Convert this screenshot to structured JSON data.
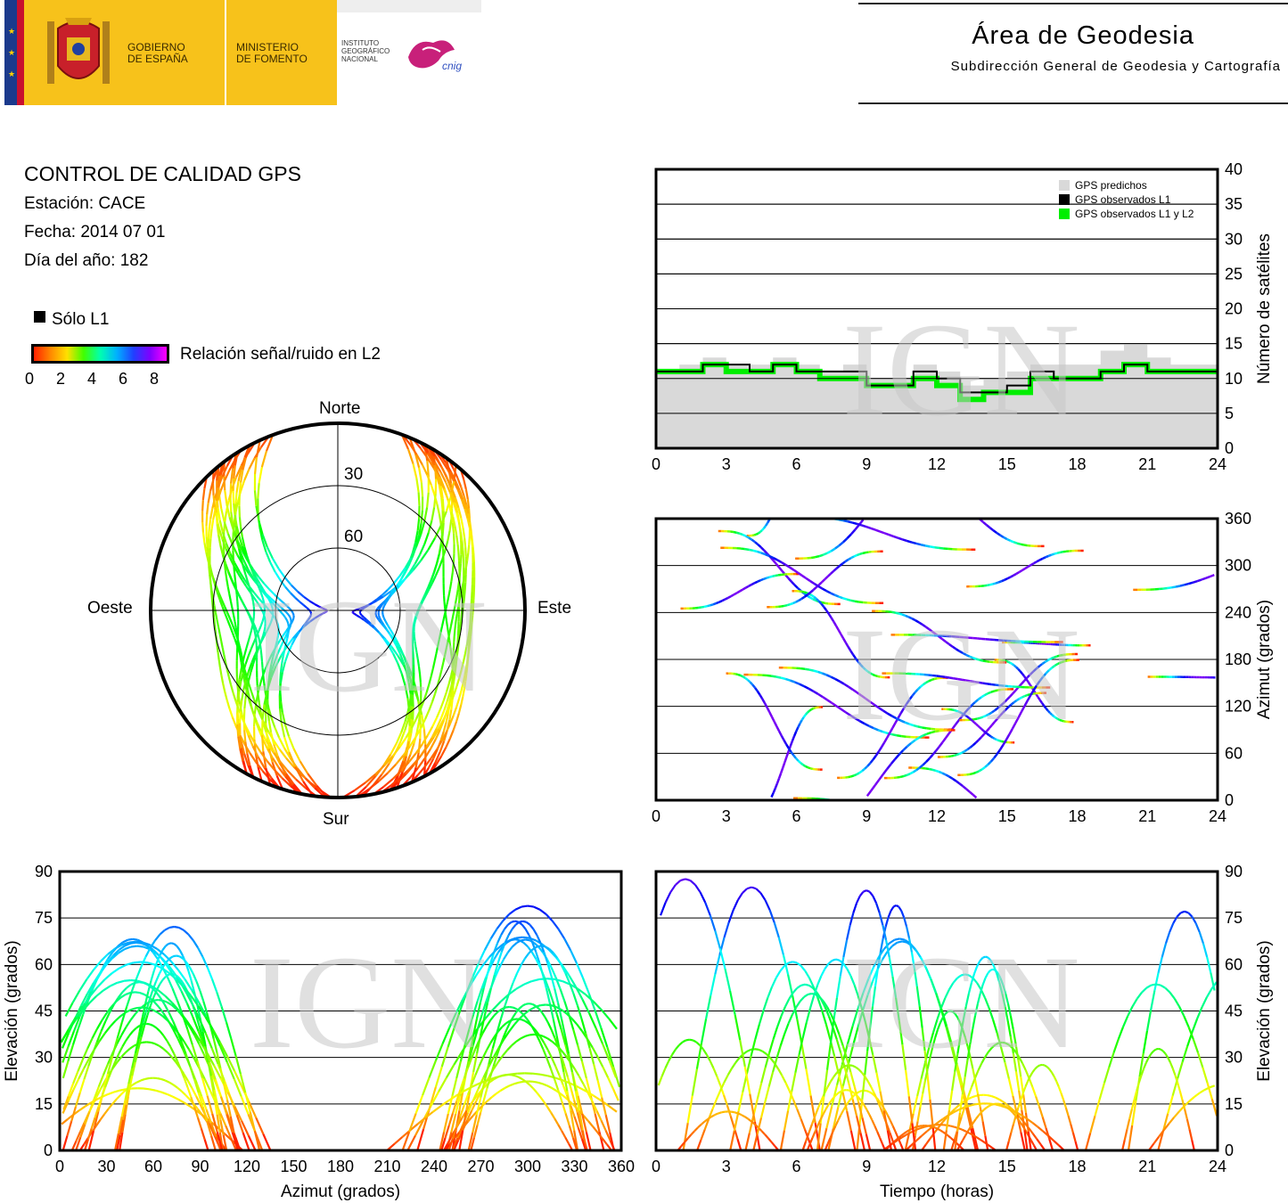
{
  "header": {
    "gov_line1": "GOBIERNO",
    "gov_line2": "DE ESPAÑA",
    "ministry_line1": "MINISTERIO",
    "ministry_line2": "DE FOMENTO",
    "inst_line1": "INSTITUTO",
    "inst_line2": "GEOGRÁFICO",
    "inst_line3": "NACIONAL",
    "cnig_logo_text": "cnig",
    "area_title": "Área de Geodesia",
    "area_subtitle": "Subdirección General de Geodesia y Cartografía"
  },
  "info": {
    "title": "CONTROL DE CALIDAD GPS",
    "station": "Estación: CACE",
    "date": "Fecha: 2014 07 01",
    "doy": "Día del año: 182",
    "legend_l1": "Sólo L1",
    "legend_snr": "Relación señal/ruido en L2",
    "colorbar_ticks": [
      "0",
      "2",
      "4",
      "6",
      "8"
    ]
  },
  "watermark": "IGN",
  "colors": {
    "predicted": "#d9d9d9",
    "observed_l1": "#000000",
    "observed_l1_l2": "#00ee00"
  },
  "chart_data": [
    {
      "type": "scatter",
      "name": "skyplot",
      "subtype": "polar",
      "directions": {
        "north": "Norte",
        "south": "Sur",
        "east": "Este",
        "west": "Oeste"
      },
      "elevation_rings": [
        "30",
        "60"
      ],
      "color_scale": "SNR L2 0-8",
      "hidden_region": "north of ~55 deg elevation arc (GPS hole)"
    },
    {
      "type": "area",
      "name": "satellites",
      "xlim": [
        0,
        24
      ],
      "ylim": [
        0,
        40
      ],
      "x_ticks": [
        "0",
        "3",
        "6",
        "9",
        "12",
        "15",
        "18",
        "21",
        "24"
      ],
      "y_ticks": [
        "0",
        "5",
        "10",
        "15",
        "20",
        "25",
        "30",
        "35",
        "40"
      ],
      "ylabel": "Número de satélites",
      "legend": [
        "GPS predichos",
        "GPS observados L1",
        "GPS observados L1 y L2"
      ],
      "legend_position": "top-right",
      "grid": true,
      "x": [
        0,
        1,
        2,
        3,
        4,
        5,
        6,
        7,
        8,
        9,
        10,
        11,
        12,
        13,
        14,
        15,
        16,
        17,
        18,
        19,
        20,
        21,
        22,
        23,
        24
      ],
      "predicted": [
        11,
        12,
        13,
        12,
        12,
        13,
        12,
        11,
        12,
        10,
        10,
        12,
        11,
        9,
        10,
        11,
        12,
        12,
        12,
        14,
        15,
        13,
        12,
        12,
        12
      ],
      "observed_l1": [
        11,
        11,
        12,
        12,
        11,
        12,
        11,
        11,
        11,
        9,
        9,
        11,
        10,
        8,
        8,
        9,
        11,
        10,
        10,
        11,
        12,
        11,
        11,
        11,
        11
      ],
      "observed_l1_l2": [
        11,
        11,
        12,
        11,
        11,
        12,
        11,
        10,
        10,
        9,
        9,
        10,
        9,
        7,
        8,
        8,
        10,
        10,
        10,
        11,
        12,
        11,
        11,
        11,
        11
      ]
    },
    {
      "type": "scatter",
      "name": "azimuth_time",
      "xlim": [
        0,
        24
      ],
      "ylim": [
        0,
        360
      ],
      "x_ticks": [
        "0",
        "3",
        "6",
        "9",
        "12",
        "15",
        "18",
        "21",
        "24"
      ],
      "y_ticks": [
        "0",
        "60",
        "120",
        "180",
        "240",
        "300",
        "360"
      ],
      "ylabel": "Azimut (grados)",
      "grid": true
    },
    {
      "type": "scatter",
      "name": "elevation_azimuth",
      "xlim": [
        0,
        360
      ],
      "ylim": [
        0,
        90
      ],
      "x_ticks": [
        "0",
        "30",
        "60",
        "90",
        "120",
        "150",
        "180",
        "210",
        "240",
        "270",
        "300",
        "330",
        "360"
      ],
      "y_ticks": [
        "0",
        "15",
        "30",
        "45",
        "60",
        "75",
        "90"
      ],
      "xlabel": "Azimut (grados)",
      "ylabel": "Elevación (grados)",
      "grid": true
    },
    {
      "type": "scatter",
      "name": "elevation_time",
      "xlim": [
        0,
        24
      ],
      "ylim": [
        0,
        90
      ],
      "x_ticks": [
        "0",
        "3",
        "6",
        "9",
        "12",
        "15",
        "18",
        "21",
        "24"
      ],
      "y_ticks": [
        "0",
        "15",
        "30",
        "45",
        "60",
        "75",
        "90"
      ],
      "xlabel": "Tiempo (horas)",
      "ylabel": "Elevación (grados)",
      "grid": true
    }
  ]
}
